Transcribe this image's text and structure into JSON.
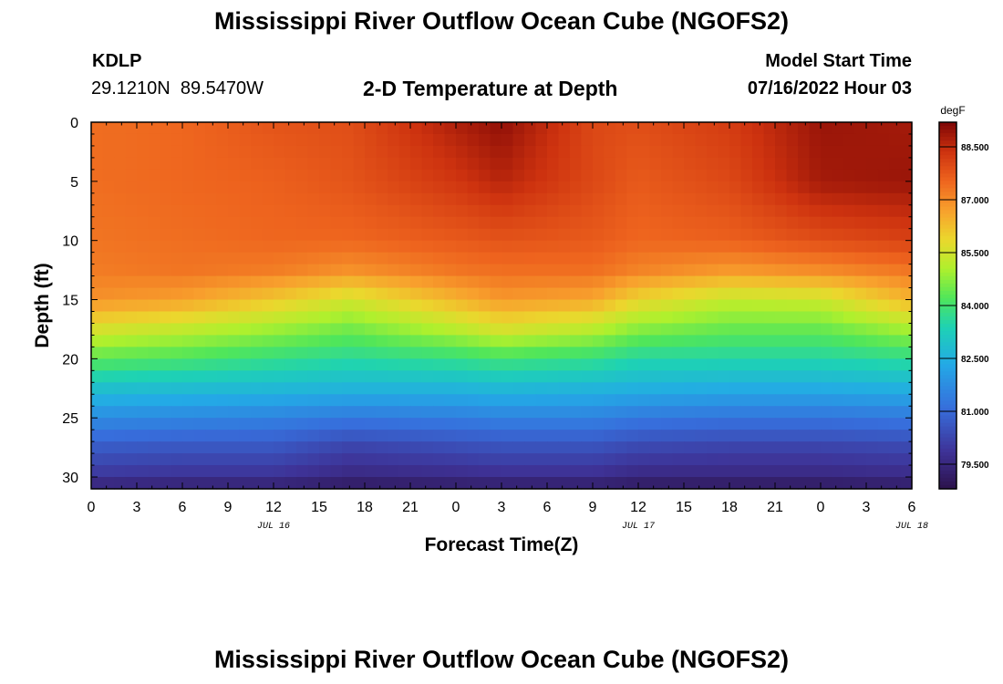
{
  "header": {
    "title": "Mississippi River Outflow Ocean Cube (NGOFS2)",
    "station": "KDLP",
    "coords": "29.1210N  89.5470W",
    "subtitle": "2-D Temperature at Depth",
    "model_start_label": "Model Start Time",
    "model_start_value": "07/16/2022 Hour 03"
  },
  "footer": {
    "title": "Mississippi River Outflow Ocean Cube (NGOFS2)"
  },
  "chart_data": {
    "type": "heatmap",
    "xlabel": "Forecast Time(Z)",
    "ylabel": "Depth (ft)",
    "x_tick_labels": [
      "0",
      "3",
      "6",
      "9",
      "12",
      "15",
      "18",
      "21",
      "0",
      "3",
      "6",
      "9",
      "12",
      "15",
      "18",
      "21",
      "0",
      "3",
      "6"
    ],
    "date_labels": [
      {
        "label": "JUL 16",
        "hour_index": 12
      },
      {
        "label": "JUL 17",
        "hour_index": 36
      },
      {
        "label": "JUL 18",
        "hour_index": 54
      }
    ],
    "x_range_hours": [
      0,
      54
    ],
    "y_ticks": [
      0,
      5,
      10,
      15,
      20,
      25,
      30
    ],
    "y_range": [
      0,
      31
    ],
    "y_inverted": true,
    "colorbar": {
      "unit": "degF",
      "ticks": [
        "88.500",
        "87.000",
        "85.500",
        "84.000",
        "82.500",
        "81.000",
        "79.500"
      ],
      "range": [
        78.8,
        89.2
      ]
    },
    "depth_levels_ft": [
      0,
      5,
      10,
      12.5,
      15,
      17.5,
      20,
      22.5,
      25,
      27.5,
      30,
      31
    ],
    "time_hours": [
      0,
      6,
      12,
      17,
      24,
      27,
      33,
      36,
      42,
      48,
      54
    ],
    "temperature_degF": [
      [
        87.4,
        87.5,
        87.8,
        87.9,
        88.7,
        89.0,
        88.0,
        87.9,
        88.2,
        88.9,
        88.8
      ],
      [
        87.4,
        87.5,
        87.6,
        87.8,
        88.3,
        88.6,
        88.0,
        87.7,
        88.0,
        88.8,
        88.9
      ],
      [
        87.3,
        87.4,
        87.5,
        87.5,
        87.7,
        87.8,
        87.7,
        87.5,
        87.6,
        87.9,
        88.1
      ],
      [
        87.2,
        87.3,
        87.2,
        86.9,
        87.3,
        87.4,
        87.4,
        87.1,
        86.8,
        87.0,
        87.3
      ],
      [
        86.9,
        86.7,
        86.1,
        85.5,
        86.4,
        86.8,
        86.6,
        85.9,
        85.3,
        85.4,
        86.4
      ],
      [
        85.6,
        85.3,
        84.9,
        84.5,
        85.2,
        85.6,
        85.2,
        84.7,
        84.4,
        84.4,
        85.0
      ],
      [
        84.3,
        84.1,
        83.8,
        83.6,
        83.8,
        84.0,
        83.8,
        83.5,
        83.5,
        83.5,
        83.7
      ],
      [
        82.9,
        82.8,
        82.7,
        82.6,
        82.6,
        82.7,
        82.6,
        82.5,
        82.4,
        82.4,
        82.5
      ],
      [
        81.7,
        81.6,
        81.5,
        81.3,
        81.4,
        81.5,
        81.5,
        81.3,
        81.2,
        81.2,
        81.3
      ],
      [
        80.7,
        80.6,
        80.6,
        80.2,
        80.4,
        80.5,
        80.5,
        80.3,
        80.2,
        80.2,
        80.3
      ],
      [
        79.9,
        79.8,
        79.8,
        79.5,
        79.6,
        79.7,
        79.7,
        79.5,
        79.5,
        79.5,
        79.6
      ],
      [
        79.3,
        79.2,
        79.2,
        79.0,
        79.1,
        79.1,
        79.1,
        79.0,
        79.0,
        79.0,
        79.1
      ]
    ]
  }
}
